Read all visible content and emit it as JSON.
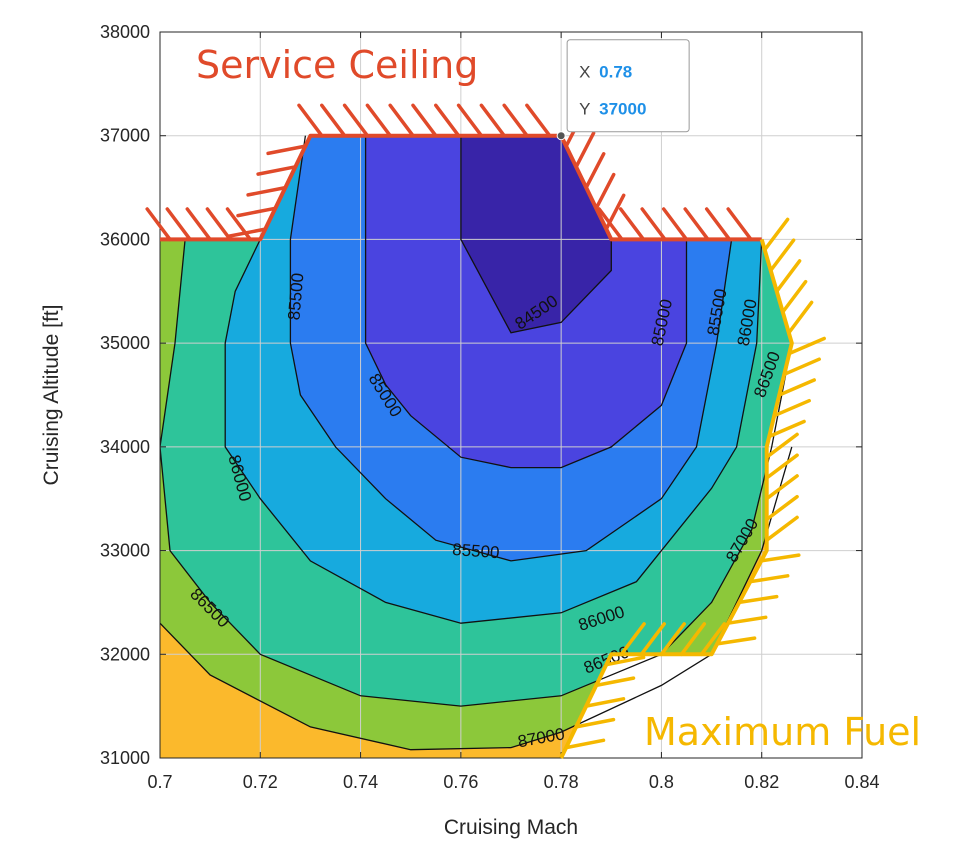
{
  "chart_data": {
    "type": "contour",
    "xlabel": "Cruising Mach",
    "ylabel": "Cruising Altitude [ft]",
    "xlim": [
      0.7,
      0.84
    ],
    "ylim": [
      31000,
      38000
    ],
    "x_ticks": [
      "0.7",
      "0.72",
      "0.74",
      "0.76",
      "0.78",
      "0.8",
      "0.82",
      "0.84"
    ],
    "y_ticks": [
      "31000",
      "32000",
      "33000",
      "34000",
      "35000",
      "36000",
      "37000",
      "38000"
    ],
    "grid": true,
    "colors": {
      "below_84500": "#3824a8",
      "84500_85000": "#4a44e0",
      "85000_85500": "#2b7cf0",
      "85500_86000": "#17aade",
      "86000_86500": "#2ec49a",
      "86500_87000": "#8cc83a",
      "above_87000": "#fbb92c",
      "service_ceiling": "#e04a2a",
      "maximum_fuel": "#f5b800"
    },
    "contours": [
      {
        "level": 84500,
        "label": "84500",
        "label_at": [
          0.775,
          35300
        ],
        "label_angle": -34,
        "points": [
          [
            0.76,
            37000
          ],
          [
            0.76,
            36000
          ],
          [
            0.77,
            35100
          ],
          [
            0.78,
            35200
          ],
          [
            0.79,
            35700
          ],
          [
            0.79,
            36000
          ],
          [
            0.78,
            37000
          ]
        ]
      },
      {
        "level": 85000,
        "label": "85000",
        "label_at": [
          0.745,
          34500
        ],
        "label_angle": 58,
        "label2": "85000",
        "label2_at": [
          0.8,
          35200
        ],
        "label2_angle": -78,
        "points": [
          [
            0.741,
            37000
          ],
          [
            0.741,
            36000
          ],
          [
            0.741,
            35000
          ],
          [
            0.745,
            34600
          ],
          [
            0.75,
            34300
          ],
          [
            0.76,
            33900
          ],
          [
            0.77,
            33800
          ],
          [
            0.78,
            33800
          ],
          [
            0.79,
            34000
          ],
          [
            0.8,
            34400
          ],
          [
            0.805,
            35000
          ],
          [
            0.805,
            36000
          ]
        ]
      },
      {
        "level": 85500,
        "label": "85500",
        "label_at": [
          0.727,
          35450
        ],
        "label_angle": -85,
        "label2": "85500",
        "label2_at": [
          0.763,
          33000
        ],
        "label2_angle": 4,
        "label3": "85500",
        "label3_at": [
          0.811,
          35300
        ],
        "label3_angle": -80,
        "points": [
          [
            0.729,
            37000
          ],
          [
            0.726,
            36000
          ],
          [
            0.726,
            35000
          ],
          [
            0.728,
            34500
          ],
          [
            0.735,
            34000
          ],
          [
            0.745,
            33500
          ],
          [
            0.755,
            33100
          ],
          [
            0.77,
            32900
          ],
          [
            0.785,
            33000
          ],
          [
            0.8,
            33500
          ],
          [
            0.807,
            34000
          ],
          [
            0.811,
            35000
          ],
          [
            0.814,
            36000
          ]
        ]
      },
      {
        "level": 86000,
        "label": "86000",
        "label_at": [
          0.716,
          33700
        ],
        "label_angle": 75,
        "label2": "86000",
        "label2_at": [
          0.788,
          32350
        ],
        "label2_angle": -18,
        "label3": "86000",
        "label3_at": [
          0.817,
          35200
        ],
        "label3_angle": -80,
        "points": [
          [
            0.72,
            36000
          ],
          [
            0.715,
            35500
          ],
          [
            0.713,
            35000
          ],
          [
            0.713,
            34000
          ],
          [
            0.72,
            33500
          ],
          [
            0.73,
            32900
          ],
          [
            0.745,
            32500
          ],
          [
            0.76,
            32300
          ],
          [
            0.78,
            32400
          ],
          [
            0.795,
            32700
          ],
          [
            0.81,
            33600
          ],
          [
            0.815,
            34000
          ],
          [
            0.819,
            35000
          ],
          [
            0.82,
            36000
          ]
        ]
      },
      {
        "level": 86500,
        "label": "86500",
        "label_at": [
          0.71,
          32450
        ],
        "label_angle": 45,
        "label2": "86500",
        "label2_at": [
          0.789,
          31950
        ],
        "label2_angle": -22,
        "label3": "86500",
        "label3_at": [
          0.821,
          34700
        ],
        "label3_angle": -70,
        "points": [
          [
            0.705,
            36000
          ],
          [
            0.703,
            35000
          ],
          [
            0.7,
            34000
          ],
          [
            0.702,
            33000
          ],
          [
            0.71,
            32500
          ],
          [
            0.72,
            32000
          ],
          [
            0.74,
            31600
          ],
          [
            0.76,
            31500
          ],
          [
            0.78,
            31600
          ],
          [
            0.8,
            32000
          ],
          [
            0.81,
            32500
          ],
          [
            0.818,
            33200
          ],
          [
            0.822,
            34000
          ],
          [
            0.826,
            35000
          ]
        ]
      },
      {
        "level": 87000,
        "label": "87000",
        "label_at": [
          0.776,
          31200
        ],
        "label_angle": -10,
        "label2": "87000",
        "label2_at": [
          0.816,
          33100
        ],
        "label2_angle": -60,
        "points": [
          [
            0.7,
            32300
          ],
          [
            0.71,
            31800
          ],
          [
            0.73,
            31300
          ],
          [
            0.75,
            31080
          ],
          [
            0.77,
            31100
          ],
          [
            0.78,
            31250
          ],
          [
            0.8,
            31700
          ],
          [
            0.81,
            32000
          ],
          [
            0.82,
            33000
          ],
          [
            0.826,
            34000
          ]
        ]
      }
    ],
    "constraints": [
      {
        "name": "Service Ceiling",
        "points": [
          [
            0.7,
            36000
          ],
          [
            0.72,
            36000
          ],
          [
            0.73,
            37000
          ],
          [
            0.78,
            37000
          ],
          [
            0.79,
            36000
          ],
          [
            0.82,
            36000
          ]
        ]
      },
      {
        "name": "Maximum Fuel",
        "points": [
          [
            0.82,
            36000
          ],
          [
            0.826,
            35000
          ],
          [
            0.821,
            34000
          ],
          [
            0.821,
            33000
          ],
          [
            0.81,
            32000
          ],
          [
            0.79,
            32000
          ],
          [
            0.78,
            31000
          ]
        ]
      }
    ],
    "datatip": {
      "x_key": "X",
      "x_value": "0.78",
      "y_key": "Y",
      "y_value": "37000",
      "at": [
        0.78,
        37000
      ]
    }
  }
}
